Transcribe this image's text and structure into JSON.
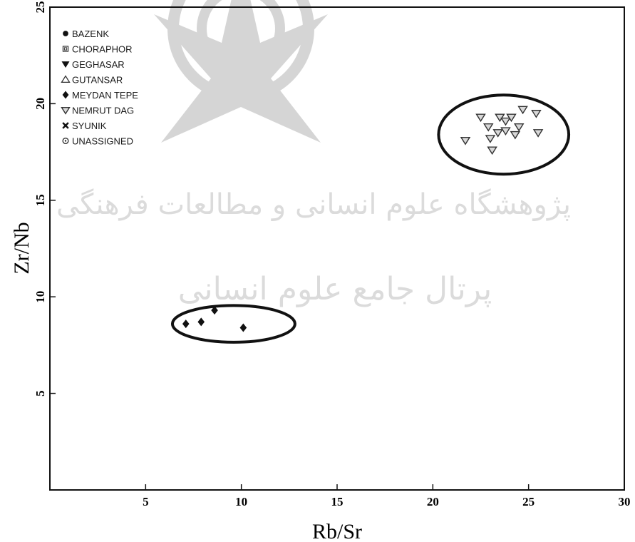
{
  "chart_data": {
    "type": "scatter",
    "xlabel": "Rb/Sr",
    "ylabel": "Zr/Nb",
    "xlim": [
      0,
      30
    ],
    "ylim": [
      0,
      25
    ],
    "x_ticks": [
      5,
      10,
      15,
      20,
      25,
      30
    ],
    "y_ticks": [
      5,
      10,
      15,
      20,
      25
    ],
    "grid": false,
    "legend_position": "top-left",
    "legend": [
      {
        "name": "BAZENK",
        "marker": "filled-circle"
      },
      {
        "name": "CHORAPHOR",
        "marker": "boxed-square"
      },
      {
        "name": "GEGHASAR",
        "marker": "filled-down-triangle"
      },
      {
        "name": "GUTANSAR",
        "marker": "open-up-triangle"
      },
      {
        "name": "MEYDAN TEPE",
        "marker": "filled-diamond"
      },
      {
        "name": "NEMRUT DAG",
        "marker": "open-down-triangle"
      },
      {
        "name": "SYUNIK",
        "marker": "cross"
      },
      {
        "name": "UNASSIGNED",
        "marker": "circle-dot"
      }
    ],
    "series": [
      {
        "name": "MEYDAN TEPE",
        "marker": "filled-diamond",
        "points": [
          {
            "x": 7.1,
            "y": 8.6
          },
          {
            "x": 7.9,
            "y": 8.7
          },
          {
            "x": 8.6,
            "y": 9.3
          },
          {
            "x": 10.1,
            "y": 8.4
          }
        ]
      },
      {
        "name": "NEMRUT DAG",
        "marker": "open-down-triangle",
        "points": [
          {
            "x": 21.7,
            "y": 18.1
          },
          {
            "x": 22.5,
            "y": 19.3
          },
          {
            "x": 22.9,
            "y": 18.8
          },
          {
            "x": 23.0,
            "y": 18.2
          },
          {
            "x": 23.1,
            "y": 17.6
          },
          {
            "x": 23.4,
            "y": 18.5
          },
          {
            "x": 23.5,
            "y": 19.3
          },
          {
            "x": 23.8,
            "y": 19.1
          },
          {
            "x": 23.8,
            "y": 18.6
          },
          {
            "x": 24.1,
            "y": 19.3
          },
          {
            "x": 24.3,
            "y": 18.4
          },
          {
            "x": 24.5,
            "y": 18.8
          },
          {
            "x": 24.7,
            "y": 19.7
          },
          {
            "x": 25.4,
            "y": 19.5
          },
          {
            "x": 25.5,
            "y": 18.5
          }
        ]
      }
    ],
    "annotations": [
      {
        "type": "ellipse",
        "cx": 9.6,
        "cy": 8.6,
        "rx": 3.2,
        "ry": 0.95
      },
      {
        "type": "ellipse",
        "cx": 23.7,
        "cy": 18.4,
        "rx": 3.4,
        "ry": 2.05
      }
    ],
    "watermark": {
      "line1": "پژوهشگاه علوم انسانی و مطالعات فرهنگی",
      "line2": "پرتال جامع علوم انسانی"
    }
  }
}
